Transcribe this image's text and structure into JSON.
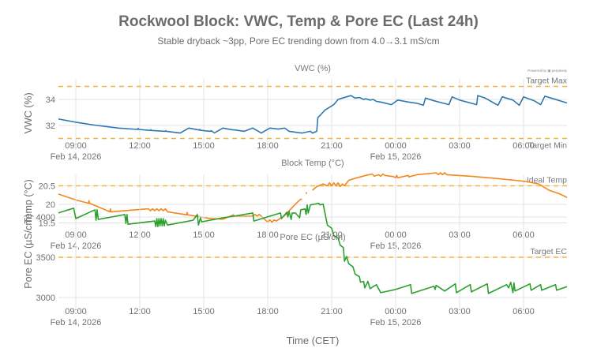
{
  "header": {
    "title": "Rockwool Block: VWC, Temp & Pore EC (Last 24h)",
    "subtitle": "Stable dryback ~3pp, Pore EC trending down from 4.0→3.1 mS/cm",
    "powered_by": "Powered by ▣ perplexity"
  },
  "chart_data": {
    "type": "line",
    "title": "Rockwool Block: VWC, Temp & Pore EC (Last 24h)",
    "subtitle": "Stable dryback ~3pp, Pore EC trending down from 4.0→3.1 mS/cm",
    "xlabel": "Time (CET)",
    "x_range_hours": [
      8.17,
      32.0
    ],
    "x_ticks": [
      {
        "hour": 9,
        "label": "09:00",
        "date": "Feb 14, 2026"
      },
      {
        "hour": 12,
        "label": "12:00",
        "date": ""
      },
      {
        "hour": 15,
        "label": "15:00",
        "date": ""
      },
      {
        "hour": 18,
        "label": "18:00",
        "date": ""
      },
      {
        "hour": 21,
        "label": "21:00",
        "date": ""
      },
      {
        "hour": 24,
        "label": "00:00",
        "date": "Feb 15, 2026"
      },
      {
        "hour": 27,
        "label": "03:00",
        "date": ""
      },
      {
        "hour": 30,
        "label": "06:00",
        "date": ""
      }
    ],
    "panels": [
      {
        "id": "vwc",
        "title": "VWC (%)",
        "ylabel": "VWC (%)",
        "ylim": [
          30.3,
          35.6
        ],
        "y_ticks": [
          32,
          34
        ],
        "color": "#2e78b0",
        "grid": true,
        "reference_lines": [
          {
            "value": 35,
            "label": "Target Max",
            "label_pos": "above"
          },
          {
            "value": 31,
            "label": "Target Min",
            "label_pos": "below"
          }
        ],
        "x_labels_show_date": true,
        "points": [
          [
            8.17,
            32.5
          ],
          [
            9.0,
            32.25
          ],
          [
            10.0,
            32.0
          ],
          [
            11.0,
            31.8
          ],
          [
            11.9,
            31.7
          ],
          [
            11.92,
            31.78
          ],
          [
            11.95,
            31.7
          ],
          [
            12.5,
            31.62
          ],
          [
            12.52,
            31.68
          ],
          [
            12.55,
            31.62
          ],
          [
            13.2,
            31.55
          ],
          [
            13.22,
            31.6
          ],
          [
            13.25,
            31.55
          ],
          [
            13.9,
            31.42
          ],
          [
            14.3,
            31.8
          ],
          [
            14.8,
            31.65
          ],
          [
            14.82,
            31.7
          ],
          [
            14.85,
            31.63
          ],
          [
            15.3,
            31.55
          ],
          [
            15.35,
            31.6
          ],
          [
            15.5,
            31.43
          ],
          [
            15.9,
            31.8
          ],
          [
            16.3,
            31.68
          ],
          [
            16.5,
            31.65
          ],
          [
            16.9,
            31.55
          ],
          [
            17.3,
            31.8
          ],
          [
            17.7,
            31.42
          ],
          [
            18.1,
            31.8
          ],
          [
            18.5,
            31.72
          ],
          [
            18.8,
            31.8
          ],
          [
            19.0,
            31.55
          ],
          [
            19.6,
            31.42
          ],
          [
            20.0,
            31.55
          ],
          [
            20.1,
            31.42
          ],
          [
            20.3,
            31.55
          ],
          [
            20.35,
            32.6
          ],
          [
            20.5,
            32.85
          ],
          [
            20.7,
            33.2
          ],
          [
            20.9,
            33.4
          ],
          [
            21.1,
            33.6
          ],
          [
            21.3,
            34.0
          ],
          [
            21.5,
            34.1
          ],
          [
            21.7,
            34.2
          ],
          [
            21.9,
            34.3
          ],
          [
            22.1,
            34.1
          ],
          [
            22.3,
            34.15
          ],
          [
            22.5,
            34.0
          ],
          [
            22.6,
            34.05
          ],
          [
            22.8,
            33.95
          ],
          [
            22.95,
            34.0
          ],
          [
            23.1,
            33.85
          ],
          [
            23.3,
            33.8
          ],
          [
            23.8,
            33.6
          ],
          [
            24.1,
            33.95
          ],
          [
            24.6,
            33.8
          ],
          [
            25.0,
            33.7
          ],
          [
            25.3,
            33.55
          ],
          [
            25.4,
            34.1
          ],
          [
            25.8,
            33.9
          ],
          [
            26.5,
            33.6
          ],
          [
            26.65,
            34.2
          ],
          [
            27.0,
            33.95
          ],
          [
            27.8,
            33.6
          ],
          [
            27.85,
            34.3
          ],
          [
            28.2,
            34.1
          ],
          [
            28.8,
            33.55
          ],
          [
            29.0,
            34.2
          ],
          [
            29.5,
            33.95
          ],
          [
            29.8,
            33.55
          ],
          [
            30.0,
            34.2
          ],
          [
            30.5,
            33.9
          ],
          [
            30.8,
            33.6
          ],
          [
            31.0,
            34.25
          ],
          [
            31.4,
            34.05
          ],
          [
            32.0,
            33.75
          ],
          [
            32.5,
            33.55
          ],
          [
            33.0,
            33.35
          ],
          [
            33.5,
            33.15
          ],
          [
            34.0,
            33.0
          ]
        ]
      },
      {
        "id": "temp",
        "title": "Block Temp (°C)",
        "ylabel": "Temp (°C)",
        "ylim": [
          19.35,
          20.8
        ],
        "y_ticks": [
          19.5,
          20,
          20.5
        ],
        "y_tick_labels": [
          "19.5",
          "20",
          "20.5"
        ],
        "color": "#f2871e",
        "grid": true,
        "reference_lines": [
          {
            "value": 20.5,
            "label": "Ideal Temp",
            "label_pos": "above"
          }
        ],
        "x_labels_show_date": true,
        "points": [
          [
            8.17,
            20.28
          ],
          [
            9.0,
            20.12
          ],
          [
            9.6,
            20.03
          ],
          [
            9.62,
            20.1
          ],
          [
            9.65,
            20.03
          ],
          [
            10.6,
            19.8
          ],
          [
            10.62,
            19.88
          ],
          [
            10.65,
            19.8
          ],
          [
            12.4,
            19.88
          ],
          [
            12.5,
            19.83
          ],
          [
            12.6,
            19.88
          ],
          [
            12.7,
            19.83
          ],
          [
            12.8,
            19.88
          ],
          [
            12.9,
            19.83
          ],
          [
            13.0,
            19.88
          ],
          [
            13.1,
            19.83
          ],
          [
            13.2,
            19.88
          ],
          [
            13.3,
            19.8
          ],
          [
            14.2,
            19.72
          ],
          [
            14.22,
            19.78
          ],
          [
            14.25,
            19.72
          ],
          [
            15.3,
            19.62
          ],
          [
            15.9,
            19.6
          ],
          [
            16.4,
            19.72
          ],
          [
            16.42,
            19.68
          ],
          [
            17.3,
            19.68
          ],
          [
            17.4,
            19.73
          ],
          [
            17.5,
            19.68
          ],
          [
            17.6,
            19.73
          ],
          [
            17.7,
            19.68
          ],
          [
            18.0,
            19.52
          ],
          [
            18.1,
            19.58
          ],
          [
            18.2,
            19.52
          ],
          [
            18.3,
            19.58
          ],
          [
            18.4,
            19.55
          ],
          [
            18.8,
            19.7
          ],
          [
            19.2,
            19.95
          ],
          [
            19.5,
            20.12
          ],
          [
            19.6,
            20.15
          ],
          null,
          [
            19.8,
            20.28
          ],
          [
            19.82,
            20.33
          ],
          null,
          [
            20.1,
            20.38
          ],
          [
            20.3,
            20.48
          ],
          [
            20.6,
            20.55
          ],
          [
            20.8,
            20.5
          ],
          [
            20.9,
            20.58
          ],
          [
            21.0,
            20.5
          ],
          [
            21.1,
            20.58
          ],
          [
            21.2,
            20.5
          ],
          [
            21.3,
            20.58
          ],
          [
            21.4,
            20.48
          ],
          [
            21.5,
            20.55
          ],
          [
            21.6,
            20.5
          ],
          [
            21.8,
            20.65
          ],
          [
            22.2,
            20.72
          ],
          [
            22.6,
            20.78
          ],
          [
            22.9,
            20.82
          ],
          [
            23.0,
            20.76
          ],
          [
            23.2,
            20.8
          ],
          [
            23.3,
            20.76
          ],
          [
            23.4,
            20.82
          ],
          [
            23.5,
            20.78
          ],
          [
            23.9,
            20.75
          ],
          [
            24.0,
            20.72
          ],
          [
            24.05,
            20.78
          ],
          [
            24.1,
            20.72
          ],
          [
            24.6,
            20.78
          ],
          [
            24.62,
            20.74
          ],
          [
            25.0,
            20.8
          ],
          [
            25.9,
            20.85
          ],
          [
            26.0,
            20.8
          ],
          [
            26.1,
            20.85
          ],
          [
            26.2,
            20.8
          ],
          [
            26.3,
            20.85
          ],
          [
            26.4,
            20.8
          ],
          [
            27.5,
            20.76
          ],
          [
            28.7,
            20.7
          ],
          [
            29.6,
            20.65
          ],
          [
            30.1,
            20.62
          ],
          [
            30.7,
            20.55
          ],
          [
            31.2,
            20.38
          ],
          [
            31.7,
            20.28
          ],
          [
            32.0,
            20.2
          ],
          [
            32.3,
            20.05
          ],
          [
            32.35,
            20.1
          ]
        ]
      },
      {
        "id": "ec",
        "title": "Pore EC (µS/cm)",
        "ylabel": "Pore EC (µS/cm)",
        "ylim": [
          2850,
          4300
        ],
        "y_ticks": [
          3000,
          3500,
          4000
        ],
        "color": "#2ca02c",
        "grid": true,
        "reference_lines": [
          {
            "value": 3500,
            "label": "Target EC",
            "label_pos": "above"
          }
        ],
        "x_labels_show_date": true,
        "points": [
          [
            8.17,
            4050
          ],
          [
            8.9,
            4110
          ],
          [
            9.0,
            3980
          ],
          [
            9.9,
            4090
          ],
          [
            9.95,
            3960
          ],
          [
            10.0,
            4090
          ],
          [
            10.05,
            3970
          ],
          [
            11.3,
            4030
          ],
          [
            11.35,
            3920
          ],
          [
            11.4,
            4030
          ],
          [
            11.45,
            3910
          ],
          [
            12.7,
            3950
          ],
          [
            12.75,
            3880
          ],
          [
            12.8,
            3980
          ],
          [
            12.85,
            3880
          ],
          [
            12.9,
            3980
          ],
          [
            12.95,
            3890
          ],
          [
            13.0,
            3980
          ],
          [
            13.05,
            3890
          ],
          [
            13.1,
            3980
          ],
          [
            13.15,
            3890
          ],
          [
            13.2,
            3960
          ],
          [
            13.3,
            3900
          ],
          [
            14.5,
            3960
          ],
          [
            14.7,
            4030
          ],
          [
            14.75,
            3900
          ],
          [
            14.85,
            3990
          ],
          [
            14.9,
            3940
          ],
          [
            15.9,
            3990
          ],
          [
            16.4,
            4010
          ],
          [
            17.3,
            4050
          ],
          [
            17.35,
            3950
          ],
          [
            18.6,
            4050
          ],
          [
            18.65,
            3980
          ],
          [
            18.9,
            4060
          ],
          [
            18.95,
            4000
          ],
          [
            19.0,
            4070
          ],
          [
            19.1,
            3970
          ],
          [
            19.15,
            4050
          ],
          [
            19.3,
            4050
          ],
          [
            19.5,
            3990
          ],
          [
            19.55,
            4090
          ],
          [
            19.75,
            4100
          ],
          [
            19.8,
            4030
          ],
          [
            19.85,
            4150
          ],
          [
            19.9,
            4050
          ],
          [
            20.0,
            4150
          ],
          [
            20.4,
            4170
          ],
          [
            20.45,
            4150
          ],
          [
            20.6,
            4160
          ],
          [
            20.8,
            3900
          ],
          [
            21.0,
            3860
          ],
          [
            21.1,
            3770
          ],
          [
            21.3,
            3740
          ],
          [
            21.4,
            3650
          ],
          [
            21.55,
            3620
          ],
          [
            21.6,
            3450
          ],
          [
            21.7,
            3510
          ],
          [
            21.8,
            3420
          ],
          [
            22.0,
            3380
          ],
          [
            22.1,
            3290
          ],
          [
            22.3,
            3260
          ],
          [
            22.35,
            3190
          ],
          [
            22.5,
            3200
          ],
          [
            22.55,
            3120
          ],
          [
            22.7,
            3200
          ],
          [
            22.8,
            3110
          ],
          [
            23.1,
            3160
          ],
          [
            23.3,
            3060
          ],
          [
            24.0,
            3100
          ],
          [
            24.7,
            3160
          ],
          [
            24.75,
            3050
          ],
          [
            25.8,
            3140
          ],
          [
            25.85,
            3100
          ],
          [
            25.9,
            3150
          ],
          [
            26.3,
            3080
          ],
          [
            26.8,
            3170
          ],
          [
            26.85,
            3060
          ],
          [
            27.5,
            3160
          ],
          [
            27.55,
            3070
          ],
          [
            28.3,
            3170
          ],
          [
            28.35,
            3050
          ],
          [
            29.2,
            3160
          ],
          [
            29.3,
            3120
          ],
          [
            29.4,
            3190
          ],
          [
            29.5,
            3060
          ],
          [
            29.55,
            3180
          ],
          [
            29.6,
            3080
          ],
          [
            30.3,
            3170
          ],
          [
            30.35,
            3090
          ],
          [
            30.8,
            3160
          ],
          [
            30.85,
            3090
          ],
          [
            31.5,
            3160
          ],
          [
            31.55,
            3090
          ],
          [
            32.2,
            3150
          ],
          [
            32.25,
            3090
          ],
          [
            32.8,
            3140
          ],
          [
            32.85,
            3080
          ],
          [
            33.4,
            3130
          ],
          [
            33.45,
            3080
          ],
          [
            34.0,
            3120
          ]
        ]
      }
    ],
    "reference_line_color": "#f4b53a"
  }
}
